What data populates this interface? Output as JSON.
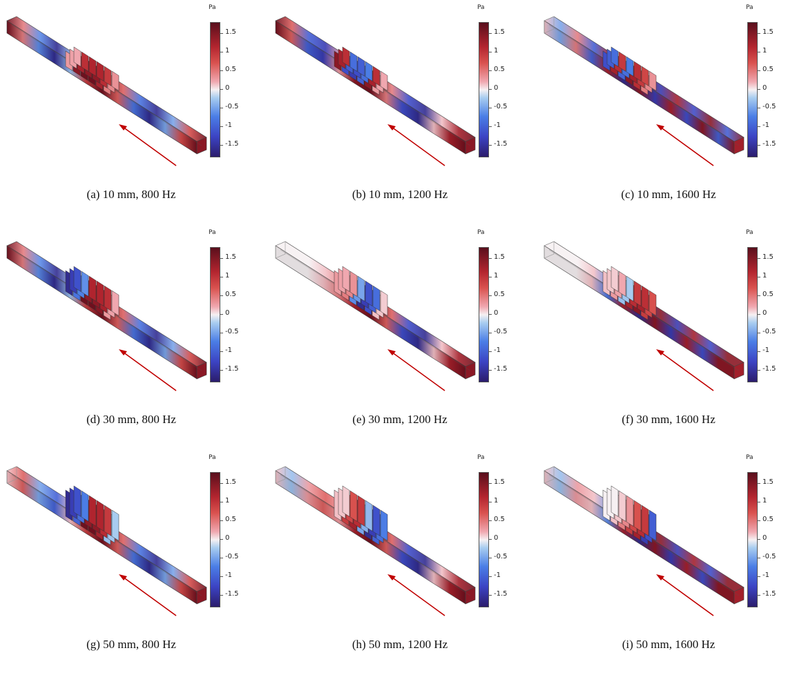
{
  "colorbar": {
    "unit": "Pa",
    "ticks": [
      "1.5",
      "1",
      "0.5",
      "0",
      "-0.5",
      "-1",
      "-1.5"
    ],
    "tick_values": [
      1.5,
      1,
      0.5,
      0,
      -0.5,
      -1,
      -1.5
    ],
    "range": [
      -1.8,
      1.8
    ]
  },
  "panels": [
    {
      "caption": "(a)  10 mm, 800 Hz",
      "pattern": [
        1,
        0.3,
        -0.4,
        -0.9,
        -0.2,
        0.6,
        1,
        0.4,
        -0.5,
        -0.9,
        -0.3,
        0.5,
        1
      ],
      "cells": [
        0.2,
        0.9,
        1,
        1,
        0.8,
        0.3
      ],
      "height": 1,
      "faded_end": false
    },
    {
      "caption": "(b)  10 mm, 1200 Hz",
      "pattern": [
        1,
        0.4,
        -0.6,
        -0.8,
        0.2,
        0.9,
        1,
        0.3,
        -0.7,
        -0.9,
        0.1,
        0.8,
        1
      ],
      "cells": [
        0.9,
        -0.7,
        -0.8,
        -0.6,
        0.9,
        0.2
      ],
      "height": 1,
      "faded_end": false
    },
    {
      "caption": "(c)  10 mm, 1600 Hz",
      "pattern": [
        0.1,
        -0.3,
        0.3,
        -0.6,
        0.8,
        -0.9,
        0.9,
        -0.8,
        0.8,
        -0.7,
        0.9,
        -0.6,
        0.9
      ],
      "cells": [
        -0.7,
        0.8,
        -0.6,
        0.9,
        0.7,
        0.3
      ],
      "height": 1,
      "faded_end": true
    },
    {
      "caption": "(d)  30 mm, 800 Hz",
      "pattern": [
        1,
        0.3,
        -0.4,
        -0.9,
        -0.2,
        0.6,
        1,
        0.4,
        -0.5,
        -0.9,
        -0.3,
        0.5,
        1
      ],
      "cells": [
        -0.9,
        -0.5,
        1,
        1,
        0.9,
        0.2
      ],
      "height": 2,
      "faded_end": false
    },
    {
      "caption": "(e)  30 mm, 1200 Hz",
      "pattern": [
        0,
        0,
        0,
        0.1,
        0.3,
        0.8,
        1,
        0.4,
        -0.7,
        -0.9,
        0.1,
        0.8,
        1
      ],
      "cells": [
        0.2,
        0.3,
        -0.4,
        -0.9,
        -0.7,
        0.1
      ],
      "height": 2,
      "faded_end": true
    },
    {
      "caption": "(f)  30 mm, 1600 Hz",
      "pattern": [
        0,
        0,
        0,
        0.1,
        -0.5,
        0.8,
        -0.9,
        0.9,
        -0.8,
        0.8,
        -0.7,
        0.9,
        0.9
      ],
      "cells": [
        0.1,
        0.2,
        -0.2,
        0.8,
        0.9,
        0.6
      ],
      "height": 2,
      "faded_end": true
    },
    {
      "caption": "(g)  50 mm, 800 Hz",
      "pattern": [
        0.1,
        0.4,
        -0.3,
        -0.6,
        0.1,
        0.6,
        1,
        0.4,
        -0.5,
        -0.9,
        -0.3,
        0.5,
        1
      ],
      "cells": [
        -0.9,
        -0.6,
        1,
        1,
        0.8,
        -0.2
      ],
      "height": 3,
      "faded_end": true
    },
    {
      "caption": "(h)  50 mm, 1200 Hz",
      "pattern": [
        0.1,
        -0.2,
        0.2,
        0.4,
        0.2,
        0.8,
        1,
        0.4,
        -0.7,
        -0.9,
        0.1,
        0.8,
        1
      ],
      "cells": [
        0.1,
        0.6,
        0.8,
        -0.3,
        -0.9,
        -0.6
      ],
      "height": 3,
      "faded_end": true
    },
    {
      "caption": "(i)  50 mm, 1600 Hz",
      "pattern": [
        0.1,
        -0.2,
        0.2,
        0.1,
        -0.4,
        0.8,
        -0.9,
        0.9,
        -0.8,
        0.8,
        -0.7,
        0.9,
        0.9
      ],
      "cells": [
        0,
        0.1,
        0.3,
        0.6,
        0.8,
        -0.8
      ],
      "height": 3,
      "faded_end": true
    }
  ]
}
